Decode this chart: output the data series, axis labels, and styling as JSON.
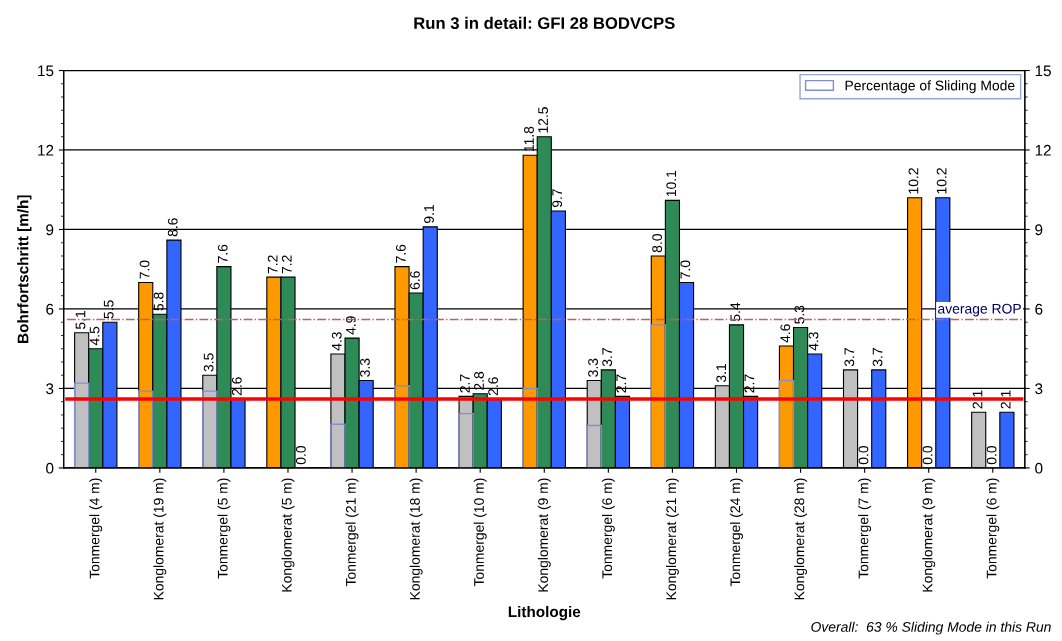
{
  "chart_data": {
    "type": "bar",
    "title": "Run 3 in detail: GFI 28 BODVCPS",
    "xlabel": "Lithologie",
    "ylabel": "Bohrfortschritt [m/h]",
    "categories": [
      "Tonmergel (4 m)",
      "Konglomerat (19 m)",
      "Tonmergel (5 m)",
      "Konglomerat (5 m)",
      "Tonmergel (21 m)",
      "Konglomerat (18 m)",
      "Tonmergel (10 m)",
      "Konglomerat (9 m)",
      "Tonmergel (6 m)",
      "Konglomerat (21 m)",
      "Tonmergel (24 m)",
      "Konglomerat (28 m)",
      "Tonmergel (7 m)",
      "Konglomerat (9 m)",
      "Tonmergel (6 m)"
    ],
    "series": [
      {
        "colors": [
          "#c0c0c0",
          "#ff9900",
          "#c0c0c0",
          "#ff9900",
          "#c0c0c0",
          "#ff9900",
          "#c0c0c0",
          "#ff9900",
          "#c0c0c0",
          "#ff9900",
          "#c0c0c0",
          "#ff9900",
          "#c0c0c0",
          "#ff9900",
          "#c0c0c0"
        ],
        "values": [
          5.1,
          7.0,
          3.5,
          7.2,
          4.3,
          7.6,
          2.7,
          11.8,
          3.3,
          8.0,
          3.1,
          4.6,
          3.7,
          10.2,
          2.1
        ],
        "value_labels": [
          "5.1",
          "7.0",
          "3.5",
          "7.2",
          "4.3",
          "7.6",
          "2.7",
          "11.8",
          "3.3",
          "8.0",
          "3.1",
          "4.6",
          "3.7",
          "10.2",
          "2.1"
        ]
      },
      {
        "color": "#2e8b57",
        "values": [
          4.5,
          5.8,
          7.6,
          7.2,
          4.9,
          6.6,
          2.8,
          12.5,
          3.7,
          10.1,
          5.4,
          5.3,
          0.0,
          0.0,
          0.0
        ],
        "value_labels": [
          "4.5",
          "5.8",
          "7.6",
          "7.2",
          "4.9",
          "6.6",
          "2.8",
          "12.5",
          "3.7",
          "10.1",
          "5.4",
          "5.3",
          "0.0",
          "0.0",
          "0.0"
        ]
      },
      {
        "color": "#3366ff",
        "values": [
          5.5,
          8.6,
          2.6,
          0.0,
          3.3,
          9.1,
          2.6,
          9.7,
          2.7,
          7.0,
          2.7,
          4.3,
          3.7,
          10.2,
          2.1
        ],
        "value_labels": [
          "5.5",
          "8.6",
          "2.6",
          "0.0",
          "3.3",
          "9.1",
          "2.6",
          "9.7",
          "2.7",
          "7.0",
          "2.7",
          "4.3",
          "3.7",
          "10.2",
          "2.1"
        ]
      },
      {
        "name": "Percentage of Sliding Mode",
        "color": "#7f8fd0",
        "values": [
          3.2,
          2.9,
          2.9,
          null,
          1.65,
          3.1,
          2.05,
          3.0,
          1.6,
          5.4,
          null,
          3.3,
          null,
          null,
          null
        ]
      }
    ],
    "ylim": [
      0,
      15
    ],
    "yticks": [
      0,
      3,
      6,
      9,
      12,
      15
    ],
    "y2lim": [
      0,
      15
    ],
    "y2ticks": [
      0,
      3,
      6,
      9,
      12,
      15
    ],
    "grid": "y",
    "legend": "top right",
    "ref_lines": [
      {
        "axis": "y",
        "value": 2.6,
        "color": "#ff0000",
        "line_style": "solid"
      },
      {
        "axis": "y",
        "value": 5.6,
        "color": "#c06060",
        "line_style": "dashed",
        "label": "average ROP"
      }
    ],
    "annotations": [
      "Overall:  63 % Sliding Mode in this Run"
    ]
  }
}
